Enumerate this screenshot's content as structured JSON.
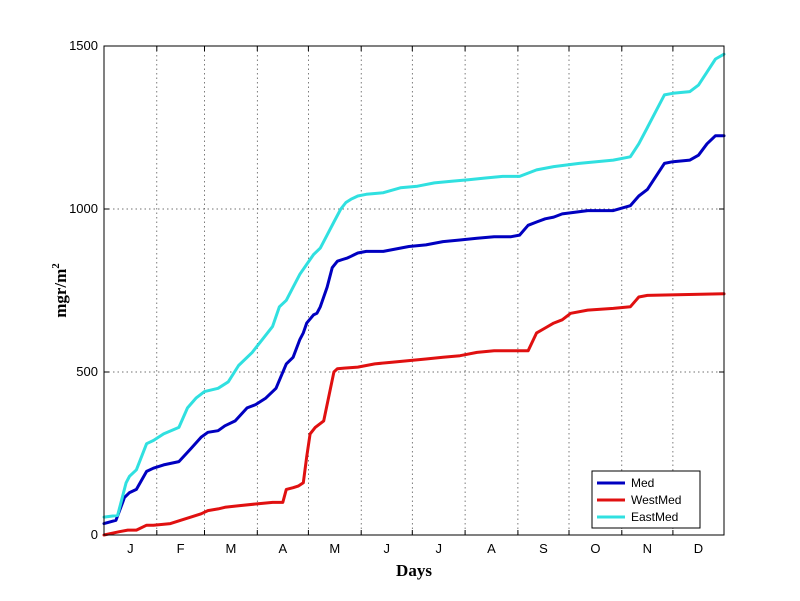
{
  "chart_data": {
    "type": "line",
    "title": "",
    "xlabel": "Days",
    "ylabel": "mgr/m",
    "ylabel_superscript": "2",
    "xlim": [
      1,
      365
    ],
    "ylim": [
      0,
      1500
    ],
    "yticks": [
      0,
      500,
      1000,
      1500
    ],
    "month_labels": [
      "J",
      "F",
      "M",
      "A",
      "M",
      "J",
      "J",
      "A",
      "S",
      "O",
      "N",
      "D"
    ],
    "grid": true,
    "legend_position": "bottom-right",
    "series": [
      {
        "name": "Med",
        "color": "#0000c0",
        "x": [
          1,
          8,
          12,
          13,
          16,
          20,
          26,
          30,
          36,
          45,
          52,
          58,
          62,
          68,
          72,
          78,
          85,
          90,
          96,
          102,
          108,
          112,
          116,
          118,
          120,
          124,
          126,
          128,
          132,
          135,
          138,
          141,
          144,
          146,
          148,
          150,
          155,
          165,
          180,
          190,
          200,
          210,
          220,
          230,
          240,
          245,
          250,
          255,
          260,
          265,
          270,
          285,
          300,
          310,
          315,
          320,
          325,
          330,
          335,
          345,
          350,
          355,
          360,
          365
        ],
        "y": [
          35,
          45,
          100,
          115,
          130,
          140,
          195,
          205,
          215,
          225,
          265,
          300,
          315,
          320,
          335,
          350,
          390,
          400,
          420,
          450,
          525,
          545,
          600,
          620,
          650,
          675,
          680,
          700,
          760,
          820,
          840,
          845,
          850,
          855,
          860,
          865,
          870,
          870,
          885,
          890,
          900,
          905,
          910,
          915,
          915,
          920,
          950,
          960,
          970,
          975,
          985,
          995,
          995,
          1010,
          1040,
          1060,
          1100,
          1140,
          1145,
          1150,
          1165,
          1200,
          1225,
          1225
        ]
      },
      {
        "name": "WestMed",
        "color": "#e01010",
        "x": [
          1,
          10,
          15,
          20,
          26,
          30,
          40,
          46,
          52,
          58,
          62,
          68,
          72,
          80,
          90,
          100,
          106,
          108,
          112,
          115,
          118,
          120,
          122,
          125,
          130,
          134,
          136,
          138,
          142,
          150,
          160,
          170,
          180,
          190,
          200,
          210,
          220,
          230,
          240,
          250,
          255,
          260,
          265,
          270,
          275,
          285,
          300,
          310,
          315,
          320,
          365
        ],
        "y": [
          0,
          10,
          15,
          15,
          30,
          30,
          35,
          45,
          55,
          65,
          75,
          80,
          85,
          90,
          95,
          100,
          100,
          140,
          145,
          150,
          160,
          240,
          310,
          330,
          350,
          450,
          500,
          510,
          512,
          515,
          525,
          530,
          535,
          540,
          545,
          550,
          560,
          565,
          565,
          565,
          620,
          635,
          650,
          660,
          680,
          690,
          695,
          700,
          730,
          735,
          740
        ]
      },
      {
        "name": "EastMed",
        "color": "#30e0e0",
        "x": [
          1,
          9,
          12,
          14,
          16,
          20,
          26,
          30,
          36,
          45,
          50,
          55,
          60,
          68,
          74,
          80,
          88,
          94,
          100,
          104,
          108,
          112,
          116,
          120,
          124,
          128,
          132,
          136,
          140,
          143,
          146,
          148,
          150,
          155,
          165,
          175,
          185,
          195,
          205,
          215,
          225,
          235,
          245,
          250,
          255,
          265,
          280,
          300,
          310,
          315,
          320,
          325,
          330,
          335,
          345,
          350,
          355,
          360,
          365
        ],
        "y": [
          55,
          60,
          120,
          160,
          180,
          200,
          280,
          290,
          310,
          330,
          390,
          420,
          440,
          450,
          470,
          520,
          560,
          600,
          640,
          700,
          720,
          760,
          800,
          830,
          860,
          880,
          920,
          960,
          1000,
          1020,
          1030,
          1035,
          1040,
          1045,
          1050,
          1065,
          1070,
          1080,
          1085,
          1090,
          1095,
          1100,
          1100,
          1110,
          1120,
          1130,
          1140,
          1150,
          1160,
          1200,
          1250,
          1300,
          1350,
          1355,
          1360,
          1380,
          1420,
          1460,
          1475
        ]
      }
    ]
  }
}
